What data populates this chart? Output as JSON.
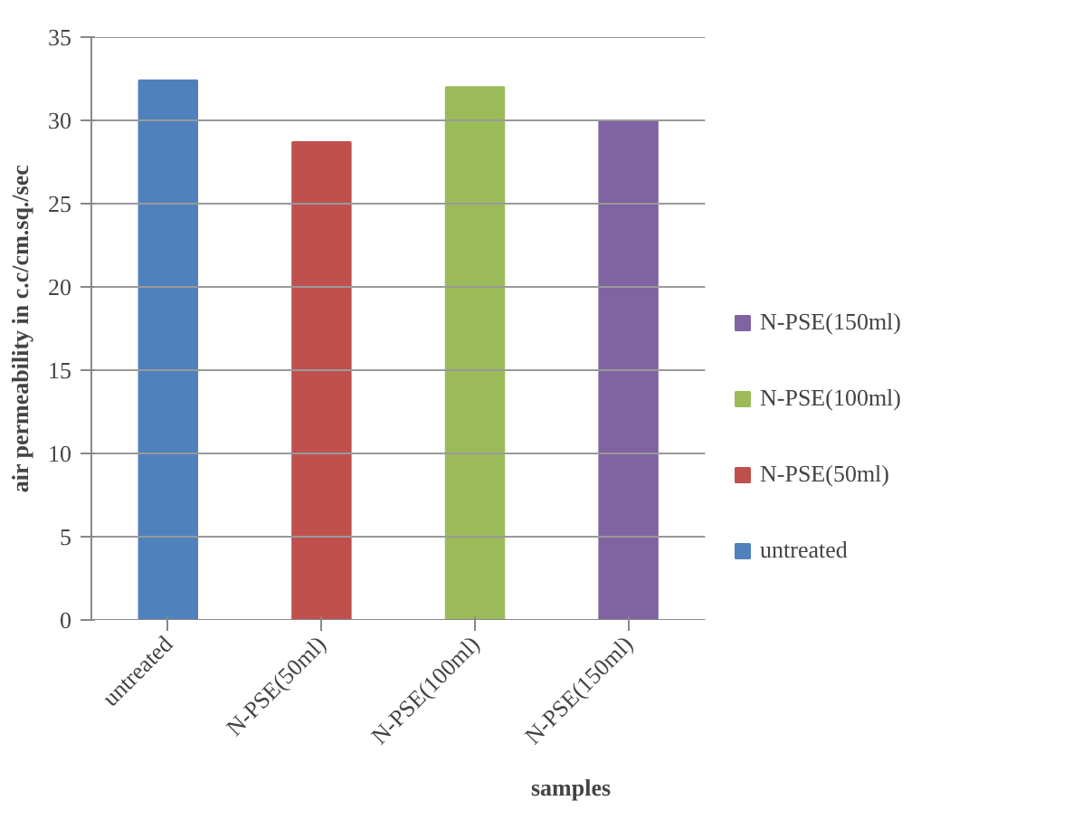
{
  "chart_data": {
    "type": "bar",
    "xlabel": "samples",
    "ylabel": "air permeability in c.c/cm.sq./sec",
    "categories": [
      "untreated",
      "N-PSE(50ml)",
      "N-PSE(100ml)",
      "N-PSE(150ml)"
    ],
    "series": [
      {
        "name": "untreated",
        "color": "#4f81bd",
        "values": [
          32.4,
          null,
          null,
          null
        ]
      },
      {
        "name": "N-PSE(50ml)",
        "color": "#c0504d",
        "values": [
          null,
          28.7,
          null,
          null
        ]
      },
      {
        "name": "N-PSE(100ml)",
        "color": "#9bbb59",
        "values": [
          null,
          null,
          32.0,
          null
        ]
      },
      {
        "name": "N-PSE(150ml)",
        "color": "#8064a2",
        "values": [
          null,
          null,
          null,
          30.0
        ]
      }
    ],
    "ylim": [
      0,
      35
    ],
    "yticks": [
      0,
      5,
      10,
      15,
      20,
      25,
      30,
      35
    ],
    "grid": "y",
    "legend": "right"
  }
}
